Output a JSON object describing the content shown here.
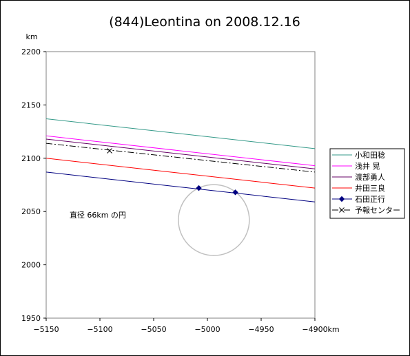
{
  "chart_data": {
    "type": "line",
    "title": "(844)Leontina on 2008.12.16",
    "xlabel": "km",
    "ylabel": "km",
    "xlim": [
      -5150,
      -4900
    ],
    "ylim": [
      1950,
      2200
    ],
    "xticks": [
      -5150,
      -5100,
      -5050,
      -5000,
      -4950,
      -4900
    ],
    "yticks": [
      1950,
      2000,
      2050,
      2100,
      2150,
      2200
    ],
    "tick_labels_x": [
      "−5150",
      "−5100",
      "−5050",
      "−5000",
      "−4950",
      "−4900"
    ],
    "tick_labels_y": [
      "1950",
      "2000",
      "2050",
      "2100",
      "2150",
      "2200"
    ],
    "grid": false,
    "legend_position": "right",
    "series": [
      {
        "name": "小和田稔",
        "color": "#339988",
        "style": "solid",
        "marker": "none",
        "x": [
          -5150,
          -4900
        ],
        "y": [
          2137,
          2109
        ]
      },
      {
        "name": "浅井 晃",
        "color": "#ff00ff",
        "style": "solid",
        "marker": "none",
        "x": [
          -5150,
          -4900
        ],
        "y": [
          2121,
          2093
        ]
      },
      {
        "name": "渡部勇人",
        "color": "#660066",
        "style": "solid",
        "marker": "none",
        "x": [
          -5150,
          -4900
        ],
        "y": [
          2118,
          2090
        ]
      },
      {
        "name": "井田三良",
        "color": "#ff0000",
        "style": "solid",
        "marker": "none",
        "x": [
          -5150,
          -4900
        ],
        "y": [
          2100,
          2072
        ]
      },
      {
        "name": "石田正行",
        "color": "#000080",
        "style": "solid",
        "marker": "diamond",
        "x": [
          -5150,
          -4900
        ],
        "y": [
          2087,
          2059
        ],
        "marker_points": [
          {
            "x": -5008,
            "y": 2072
          },
          {
            "x": -4974,
            "y": 2068
          }
        ]
      },
      {
        "name": "予報センター",
        "color": "#000000",
        "style": "dashdot",
        "marker": "x",
        "x": [
          -5150,
          -4900
        ],
        "y": [
          2114,
          2087
        ],
        "marker_points": [
          {
            "x": -5091,
            "y": 2107
          }
        ]
      }
    ],
    "circle": {
      "cx": -4994,
      "cy": 2042,
      "r": 33,
      "color": "#c0c0c0"
    },
    "annotations": [
      {
        "text": "直径 66km の円",
        "x": -5102,
        "y": 2047
      }
    ]
  }
}
